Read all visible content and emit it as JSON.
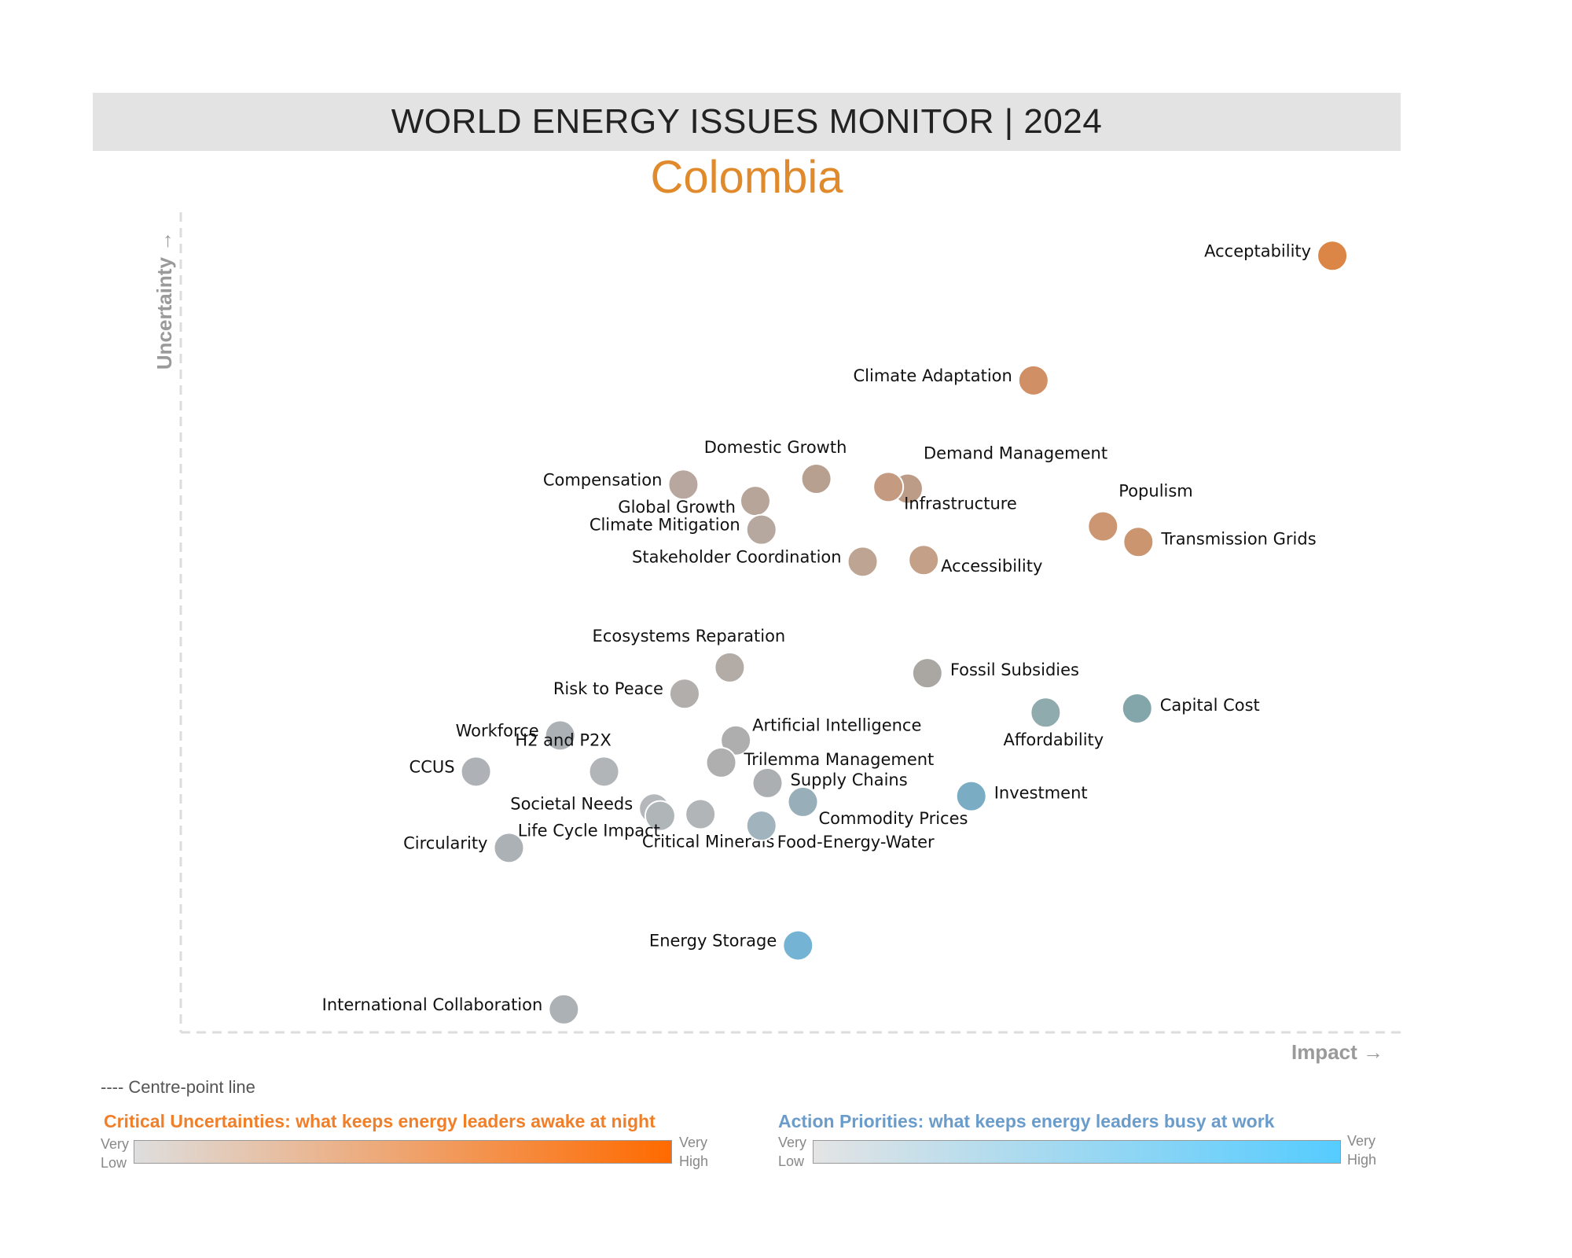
{
  "header": {
    "title": "WORLD ENERGY ISSUES MONITOR | 2024",
    "country": "Colombia"
  },
  "colors": {
    "title_bar": "#e3e3e3",
    "country": "#e08a2c",
    "critical_low": "#dedede",
    "critical_high": "#ff6a00",
    "action_low": "#e4e4e4",
    "action_high": "#55ccff"
  },
  "chart_data": {
    "type": "scatter",
    "xlabel": "Impact →",
    "ylabel": "Uncertainty →",
    "xlim": [
      0,
      100
    ],
    "ylim": [
      0,
      100
    ],
    "grid": false,
    "centre_lines": true,
    "points": [
      {
        "label": "Acceptability",
        "x": 94.4,
        "y": 94.7,
        "color": "#db8546",
        "label_side": "left"
      },
      {
        "label": "Climate Adaptation",
        "x": 69.9,
        "y": 79.5,
        "color": "#d08f64",
        "label_side": "left"
      },
      {
        "label": "Domestic Growth",
        "x": 52.1,
        "y": 67.5,
        "color": "#b8a090",
        "label_side": "above"
      },
      {
        "label": "Demand Management",
        "x": 59.6,
        "y": 66.3,
        "color": "#bc9c86",
        "label_side": "above-right"
      },
      {
        "label": "Compensation",
        "x": 41.2,
        "y": 66.8,
        "color": "#b7a79f",
        "label_side": "left"
      },
      {
        "label": "Global Growth",
        "x": 47.1,
        "y": 64.8,
        "color": "#b8a59a",
        "label_side": "left-upper"
      },
      {
        "label": "Infrastructure",
        "x": 58.0,
        "y": 66.5,
        "color": "#c49b80",
        "label_side": "below-right"
      },
      {
        "label": "Climate Mitigation",
        "x": 47.6,
        "y": 61.3,
        "color": "#b7a89f",
        "label_side": "left"
      },
      {
        "label": "Populism",
        "x": 75.6,
        "y": 61.7,
        "color": "#cd9672",
        "label_side": "above-right"
      },
      {
        "label": "Transmission Grids",
        "x": 78.5,
        "y": 59.8,
        "color": "#cb956f",
        "label_side": "right"
      },
      {
        "label": "Stakeholder Coordination",
        "x": 55.9,
        "y": 57.4,
        "color": "#bda493",
        "label_side": "left"
      },
      {
        "label": "Accessibility",
        "x": 60.9,
        "y": 57.6,
        "color": "#c5a088",
        "label_side": "right-below"
      },
      {
        "label": "Ecosystems Reparation",
        "x": 45.0,
        "y": 44.5,
        "color": "#b2aba6",
        "label_side": "above"
      },
      {
        "label": "Fossil Subsidies",
        "x": 61.2,
        "y": 43.8,
        "color": "#aaa7a2",
        "label_side": "right"
      },
      {
        "label": "Risk to Peace",
        "x": 41.3,
        "y": 41.3,
        "color": "#b2aeab",
        "label_side": "left"
      },
      {
        "label": "Affordability",
        "x": 70.9,
        "y": 39.0,
        "color": "#8fabad",
        "label_side": "below"
      },
      {
        "label": "Capital Cost",
        "x": 78.4,
        "y": 39.5,
        "color": "#83a6ab",
        "label_side": "right"
      },
      {
        "label": "Workforce",
        "x": 31.1,
        "y": 36.2,
        "color": "#acb1b5",
        "label_side": "left"
      },
      {
        "label": "Artificial Intelligence",
        "x": 45.5,
        "y": 35.6,
        "color": "#aeaeae",
        "label_side": "right-upper"
      },
      {
        "label": "H2 and P2X",
        "x": 34.7,
        "y": 31.8,
        "color": "#b2b5b8",
        "label_side": "above"
      },
      {
        "label": "CCUS",
        "x": 24.2,
        "y": 31.8,
        "color": "#aeb2b6",
        "label_side": "left"
      },
      {
        "label": "Trilemma Management",
        "x": 44.3,
        "y": 32.9,
        "color": "#afafaf",
        "label_side": "right"
      },
      {
        "label": "Supply Chains",
        "x": 48.1,
        "y": 30.4,
        "color": "#acafb1",
        "label_side": "right"
      },
      {
        "label": "Investment",
        "x": 64.8,
        "y": 28.8,
        "color": "#7aacc3",
        "label_side": "right"
      },
      {
        "label": "Societal Needs",
        "x": 38.8,
        "y": 27.3,
        "color": "#b4b8bb",
        "label_side": "left"
      },
      {
        "label": "Commodity Prices",
        "x": 51.0,
        "y": 28.1,
        "color": "#98aeb9",
        "label_side": "below-right"
      },
      {
        "label": "Life Cycle Impact",
        "x": 39.3,
        "y": 26.4,
        "color": "#b0b5b8",
        "label_side": "below-left"
      },
      {
        "label": "Critical Minerals",
        "x": 42.6,
        "y": 26.6,
        "color": "#b2b5b7",
        "label_side": "below"
      },
      {
        "label": "Food-Energy-Water",
        "x": 47.6,
        "y": 25.2,
        "color": "#a1b3bd",
        "label_side": "below-right"
      },
      {
        "label": "Circularity",
        "x": 26.9,
        "y": 22.5,
        "color": "#acb1b6",
        "label_side": "left"
      },
      {
        "label": "Energy Storage",
        "x": 50.6,
        "y": 10.6,
        "color": "#74b3d3",
        "label_side": "left"
      },
      {
        "label": "International Collaboration",
        "x": 31.4,
        "y": 2.8,
        "color": "#acb1b5",
        "label_side": "left"
      }
    ]
  },
  "legend": {
    "centre_line": "---- Centre-point line",
    "critical_title": "Critical Uncertainties: what keeps energy leaders awake at night",
    "action_title": "Action Priorities: what keeps energy leaders busy at work",
    "very": "Very",
    "low": "Low",
    "high": "High"
  }
}
